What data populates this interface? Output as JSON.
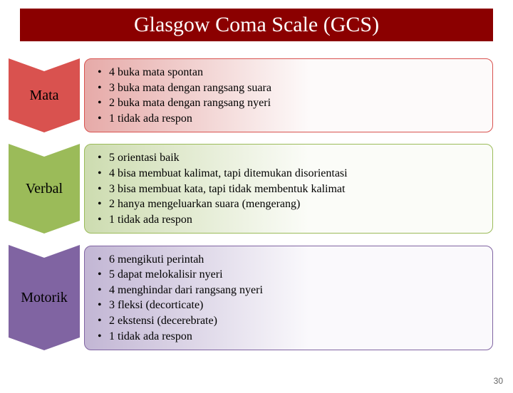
{
  "title": {
    "text": "Glasgow Coma Scale (GCS)",
    "bg": "#8b0000",
    "color": "#ffffff",
    "fontsize": 30
  },
  "sections": [
    {
      "label": "Mata",
      "chevron_fill": "#d9524f",
      "box_gradient_from": "#e6aaa8",
      "box_gradient_to": "#fdfafa",
      "box_border": "#d9524f",
      "items": [
        "4 buka mata spontan",
        "3 buka mata dengan rangsang suara",
        "2 buka mata dengan rangsang nyeri",
        "1 tidak ada respon"
      ]
    },
    {
      "label": "Verbal",
      "chevron_fill": "#9bbb59",
      "box_gradient_from": "#cddcb0",
      "box_gradient_to": "#fbfcf8",
      "box_border": "#9bbb59",
      "items": [
        "5 orientasi baik",
        "4 bisa membuat kalimat, tapi ditemukan disorientasi",
        "3 bisa membuat kata, tapi tidak membentuk kalimat",
        "2 hanya mengeluarkan suara (mengerang)",
        "1 tidak ada respon"
      ]
    },
    {
      "label": "Motorik",
      "chevron_fill": "#8064a2",
      "box_gradient_from": "#c2b6d4",
      "box_gradient_to": "#faf9fc",
      "box_border": "#8064a2",
      "items": [
        "6 mengikuti perintah",
        "5 dapat melokalisir nyeri",
        "4 menghindar dari rangsang nyeri",
        "3 fleksi (decorticate)",
        "2 ekstensi (decerebrate)",
        "1 tidak ada respon"
      ]
    }
  ],
  "page_number": "30"
}
